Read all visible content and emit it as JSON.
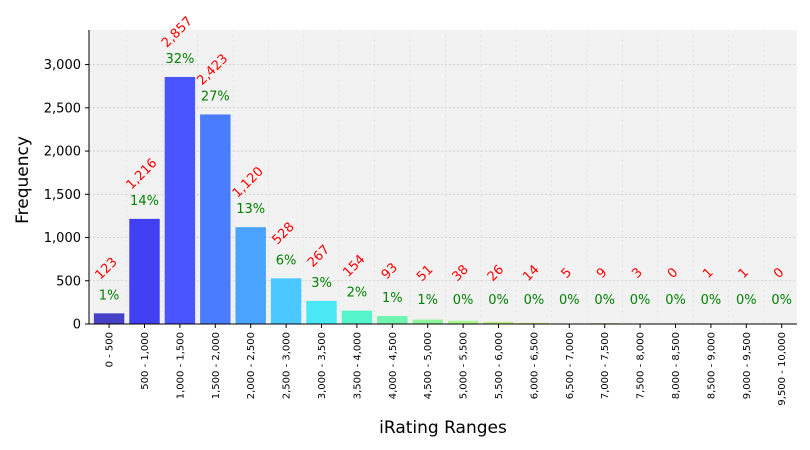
{
  "chart_data": {
    "type": "bar",
    "xlabel": "iRating Ranges",
    "ylabel": "Frequency",
    "ylim": [
      0,
      3400
    ],
    "yticks": [
      0,
      500,
      1000,
      1500,
      2000,
      2500,
      3000
    ],
    "ytick_labels": [
      "0",
      "500",
      "1,000",
      "1,500",
      "2,000",
      "2,500",
      "3,000"
    ],
    "grid": true,
    "categories": [
      "0 - 500",
      "500 - 1,000",
      "1,000 - 1,500",
      "1,500 - 2,000",
      "2,000 - 2,500",
      "2,500 - 3,000",
      "3,000 - 3,500",
      "3,500 - 4,000",
      "4,000 - 4,500",
      "4,500 - 5,000",
      "5,000 - 5,500",
      "5,500 - 6,000",
      "6,000 - 6,500",
      "6,500 - 7,000",
      "7,000 - 7,500",
      "7,500 - 8,000",
      "8,000 - 8,500",
      "8,500 - 9,000",
      "9,000 - 9,500",
      "9,500 - 10,000"
    ],
    "values": [
      123,
      1216,
      2857,
      2423,
      1120,
      528,
      267,
      154,
      93,
      51,
      38,
      26,
      14,
      5,
      9,
      3,
      0,
      1,
      1,
      0
    ],
    "count_labels": [
      "123",
      "1,216",
      "2,857",
      "2,423",
      "1,120",
      "528",
      "267",
      "154",
      "93",
      "51",
      "38",
      "26",
      "14",
      "5",
      "9",
      "3",
      "0",
      "1",
      "1",
      "0"
    ],
    "percent_labels": [
      "1%",
      "14%",
      "32%",
      "27%",
      "13%",
      "6%",
      "3%",
      "2%",
      "1%",
      "1%",
      "0%",
      "0%",
      "0%",
      "0%",
      "0%",
      "0%",
      "0%",
      "0%",
      "0%",
      "0%"
    ],
    "bar_colors": [
      "#4640c8",
      "#4040f2",
      "#4a55ff",
      "#4a7cff",
      "#4aa4ff",
      "#4ac8ff",
      "#4ae8f5",
      "#55f5cc",
      "#6ff5b0",
      "#8cf59b",
      "#aaf590",
      "#c3f088",
      "#d7e886",
      "#e5dc80",
      "#efc878",
      "#f4ab6c",
      "#f58b5e",
      "#f2684f",
      "#ee4a40",
      "#e13030"
    ],
    "colors": {
      "background": "#f2f2f2",
      "grid": "#c8c8c8",
      "count_label": "#ff0000",
      "percent_label": "#008000"
    }
  }
}
